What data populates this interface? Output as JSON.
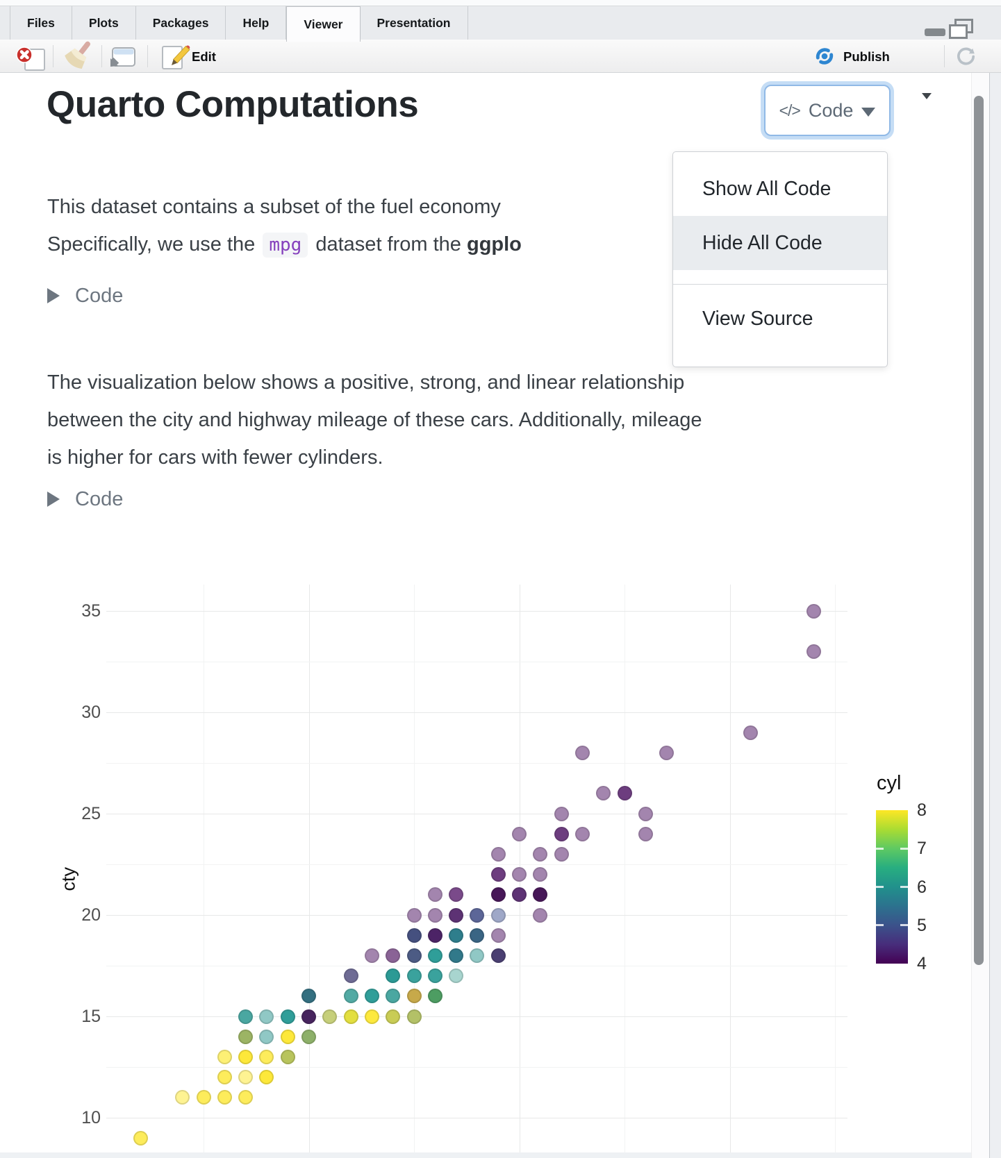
{
  "window": {
    "tab_bar": {
      "tabs": [
        "Files",
        "Plots",
        "Packages",
        "Help",
        "Viewer",
        "Presentation"
      ],
      "active_tab": "Viewer"
    },
    "toolbar": {
      "stop_icon": "clear-viewer-icon",
      "broom_icon": "clear-all-icon",
      "popout_icon": "open-in-new-window-icon",
      "edit_label": "Edit",
      "publish_label": "Publish",
      "refresh_icon": "refresh-icon",
      "publish_accent_color": "#2e86d1"
    }
  },
  "document": {
    "title": "Quarto Computations",
    "code_button": {
      "label": "Code",
      "icon_glyph": "</>",
      "icon": "code-brackets-icon",
      "focus_ring_color": "#c5ddf5"
    },
    "code_menu": {
      "groups": [
        [
          "Show All Code",
          "Hide All Code"
        ],
        [
          "View Source"
        ]
      ],
      "highlighted_item": "Hide All Code"
    },
    "para1_lines": [
      [
        {
          "text": "This dataset contains a subset of the fuel economy",
          "style": "plain"
        }
      ],
      [
        {
          "text": "Specifically, we use the ",
          "style": "plain"
        },
        {
          "text": "mpg",
          "style": "code"
        },
        {
          "text": " dataset from the ",
          "style": "plain"
        },
        {
          "text": "ggplo",
          "style": "bold"
        }
      ]
    ],
    "fold_label": "Code",
    "para2_lines": [
      "The visualization below shows a positive, strong, and linear relationship",
      "between the city and highway mileage of these cars. Additionally, mileage",
      "is higher for cars with fewer cylinders."
    ],
    "inline_code_color": "#8540bd"
  },
  "chart_data": {
    "type": "scatter",
    "x_variable": "hwy",
    "y_variable": "cty",
    "color_variable": "cyl",
    "ylabel": "cty",
    "y_ticks": [
      35,
      30,
      25,
      20,
      15,
      10
    ],
    "y_minor_gridlines": [
      32.5,
      27.5,
      22.5,
      17.5,
      12.5
    ],
    "x_gridlines_major": [
      20,
      30,
      40
    ],
    "x_gridlines_minor": [
      15,
      25,
      35,
      45
    ],
    "x_range_visible": [
      10.4,
      45.6
    ],
    "y_range_visible": [
      8,
      36.3
    ],
    "x_axis_labels_visible": false,
    "grid": true,
    "point_alpha": 0.5,
    "legend": {
      "title": "cyl",
      "ticks": [
        8,
        7,
        6,
        5,
        4
      ],
      "position": "right",
      "gradient_top_to_bottom": [
        "#fde725",
        "#aadc32",
        "#5ec962",
        "#28ae80",
        "#21918c",
        "#2c728e",
        "#3b528b",
        "#472d7b",
        "#440154"
      ]
    },
    "points_format": "[hwy, cty, rendered_color] — color encodes cyl (4=dark purple … 8=yellow, viridis, alpha 0.5; darker shades = overlapping points)",
    "points": [
      [
        44,
        35,
        "#a385ae"
      ],
      [
        44,
        33,
        "#a385ae"
      ],
      [
        41,
        29,
        "#a385ae"
      ],
      [
        33,
        28,
        "#a385ae"
      ],
      [
        37,
        28,
        "#a385ae"
      ],
      [
        34,
        26,
        "#a385ae"
      ],
      [
        35,
        26,
        "#6d3d7f"
      ],
      [
        32,
        25,
        "#a385ae"
      ],
      [
        36,
        25,
        "#a385ae"
      ],
      [
        30,
        24,
        "#a385ae"
      ],
      [
        32,
        24,
        "#6d3d7f"
      ],
      [
        33,
        24,
        "#a385ae"
      ],
      [
        36,
        24,
        "#a385ae"
      ],
      [
        29,
        23,
        "#a385ae"
      ],
      [
        31,
        23,
        "#a385ae"
      ],
      [
        32,
        23,
        "#a385ae"
      ],
      [
        29,
        22,
        "#6d3d7f"
      ],
      [
        30,
        22,
        "#a385ae"
      ],
      [
        31,
        22,
        "#a385ae"
      ],
      [
        26,
        21,
        "#a385ae"
      ],
      [
        27,
        21,
        "#7a4a8a"
      ],
      [
        29,
        21,
        "#471758"
      ],
      [
        30,
        21,
        "#5d3274"
      ],
      [
        31,
        21,
        "#471758"
      ],
      [
        25,
        20,
        "#a385ae"
      ],
      [
        26,
        20,
        "#a385ae"
      ],
      [
        27,
        20,
        "#5d3274"
      ],
      [
        28,
        20,
        "#5c6698"
      ],
      [
        29,
        20,
        "#9fa8c8"
      ],
      [
        31,
        20,
        "#a385ae"
      ],
      [
        25,
        19,
        "#45507f"
      ],
      [
        26,
        19,
        "#4c2366"
      ],
      [
        27,
        19,
        "#2e7e8c"
      ],
      [
        28,
        19,
        "#3a6584"
      ],
      [
        29,
        19,
        "#a385ae"
      ],
      [
        23,
        18,
        "#a385ae"
      ],
      [
        24,
        18,
        "#8a6396"
      ],
      [
        25,
        18,
        "#4c5b84"
      ],
      [
        26,
        18,
        "#2f9e99"
      ],
      [
        27,
        18,
        "#31798a"
      ],
      [
        28,
        18,
        "#90c8c5"
      ],
      [
        29,
        18,
        "#4a3f72"
      ],
      [
        22,
        17,
        "#6e6b94"
      ],
      [
        24,
        17,
        "#2b9a95"
      ],
      [
        25,
        17,
        "#3aa29d"
      ],
      [
        26,
        17,
        "#3aa29d"
      ],
      [
        27,
        17,
        "#a8d5cf"
      ],
      [
        20,
        16,
        "#336f80"
      ],
      [
        22,
        16,
        "#52aaa4"
      ],
      [
        23,
        16,
        "#2f9e99"
      ],
      [
        24,
        16,
        "#4aa7a1"
      ],
      [
        25,
        16,
        "#c7a94a"
      ],
      [
        26,
        16,
        "#4d9d62"
      ],
      [
        17,
        15,
        "#4aa7a1"
      ],
      [
        18,
        15,
        "#90c8c5"
      ],
      [
        19,
        15,
        "#2f9e99"
      ],
      [
        20,
        15,
        "#47245e"
      ],
      [
        21,
        15,
        "#c6cf7a"
      ],
      [
        22,
        15,
        "#e3df3f"
      ],
      [
        23,
        15,
        "#fde93d"
      ],
      [
        24,
        15,
        "#c9cc55"
      ],
      [
        25,
        15,
        "#b3c167"
      ],
      [
        17,
        14,
        "#9cb464"
      ],
      [
        18,
        14,
        "#90c8c5"
      ],
      [
        19,
        14,
        "#fde83a"
      ],
      [
        20,
        14,
        "#8db069"
      ],
      [
        16,
        13,
        "#fdf075"
      ],
      [
        17,
        13,
        "#fde83a"
      ],
      [
        18,
        13,
        "#fdec5b"
      ],
      [
        19,
        13,
        "#b8c45c"
      ],
      [
        16,
        12,
        "#fdec5b"
      ],
      [
        17,
        12,
        "#fef392"
      ],
      [
        18,
        12,
        "#fde83a"
      ],
      [
        14,
        11,
        "#fef392"
      ],
      [
        15,
        11,
        "#fdec5b"
      ],
      [
        16,
        11,
        "#fdec5b"
      ],
      [
        17,
        11,
        "#fdec5b"
      ],
      [
        12,
        9,
        "#fdec5b"
      ]
    ]
  }
}
